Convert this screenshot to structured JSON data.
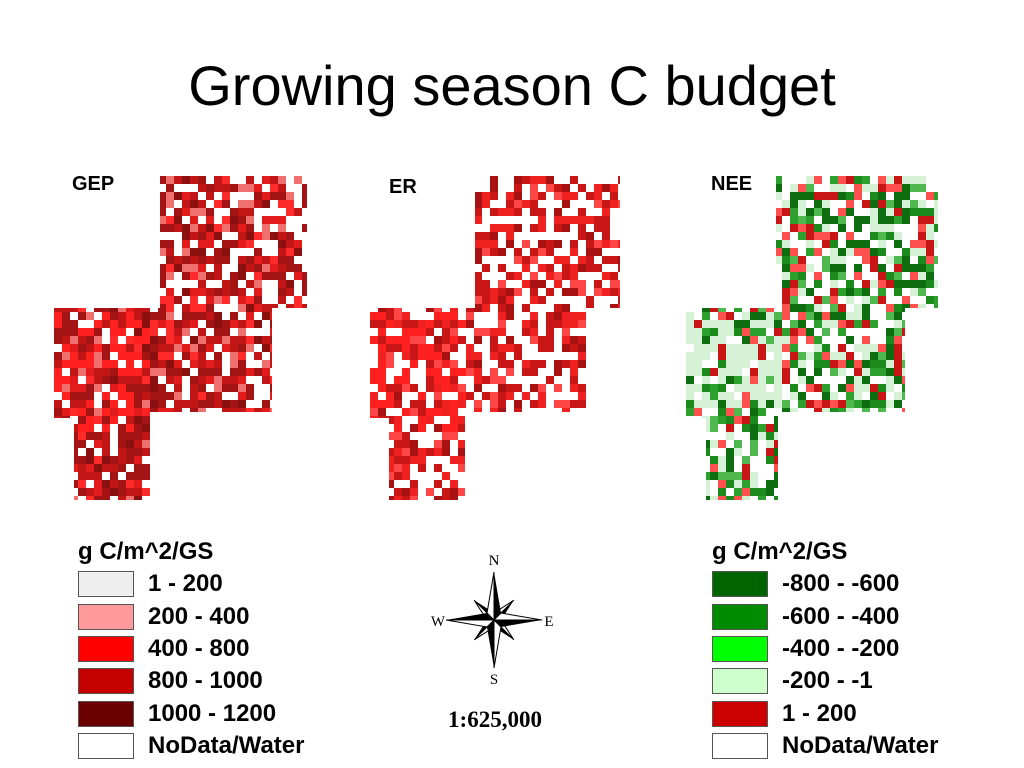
{
  "title": "Growing season C budget",
  "panels": [
    {
      "label": "GEP",
      "palette": [
        "#ffffff",
        "#ffffff",
        "#ffffff",
        "#a51414",
        "#a51414",
        "#a51414",
        "#c21515",
        "#c21515",
        "#8c0f0f",
        "#e21c1c",
        "#ff2a2a",
        "#f07070"
      ]
    },
    {
      "label": "ER",
      "palette": [
        "#ffffff",
        "#ffffff",
        "#ffffff",
        "#ffffff",
        "#ffffff",
        "#c81616",
        "#c81616",
        "#c81616",
        "#ee2020",
        "#ee2020",
        "#ff4646",
        "#a81212"
      ]
    },
    {
      "label": "NEE",
      "palette": [
        "#ffffff",
        "#ffffff",
        "#ffffff",
        "#ffffff",
        "#d6f2d6",
        "#d6f2d6",
        "#0e6d0e",
        "#0e6d0e",
        "#1d8a1d",
        "#2ea02e",
        "#4fb84f",
        "#c81616",
        "#ff5050"
      ]
    }
  ],
  "legend_left": {
    "title": "g C/m^2/GS",
    "items": [
      {
        "label": "1 - 200",
        "color": "#eeeeee"
      },
      {
        "label": "200 - 400",
        "color": "#ff9a9a"
      },
      {
        "label": "400 - 800",
        "color": "#ff0000"
      },
      {
        "label": "800 - 1000",
        "color": "#c40000"
      },
      {
        "label": "1000 - 1200",
        "color": "#6a0000"
      },
      {
        "label": "NoData/Water",
        "color": "#ffffff"
      }
    ]
  },
  "legend_right": {
    "title": "g C/m^2/GS",
    "items": [
      {
        "label": "-800 - -600",
        "color": "#006400"
      },
      {
        "label": "-600 - -400",
        "color": "#008a00"
      },
      {
        "label": "-400 - -200",
        "color": "#00ff00"
      },
      {
        "label": "-200 - -1",
        "color": "#ccffcc"
      },
      {
        "label": "1 - 200",
        "color": "#cc0000"
      },
      {
        "label": "NoData/Water",
        "color": "#ffffff"
      }
    ]
  },
  "compass": {
    "n": "N",
    "s": "S",
    "e": "E",
    "w": "W",
    "icon": "compass-rose-icon"
  },
  "scale": "1:625,000"
}
